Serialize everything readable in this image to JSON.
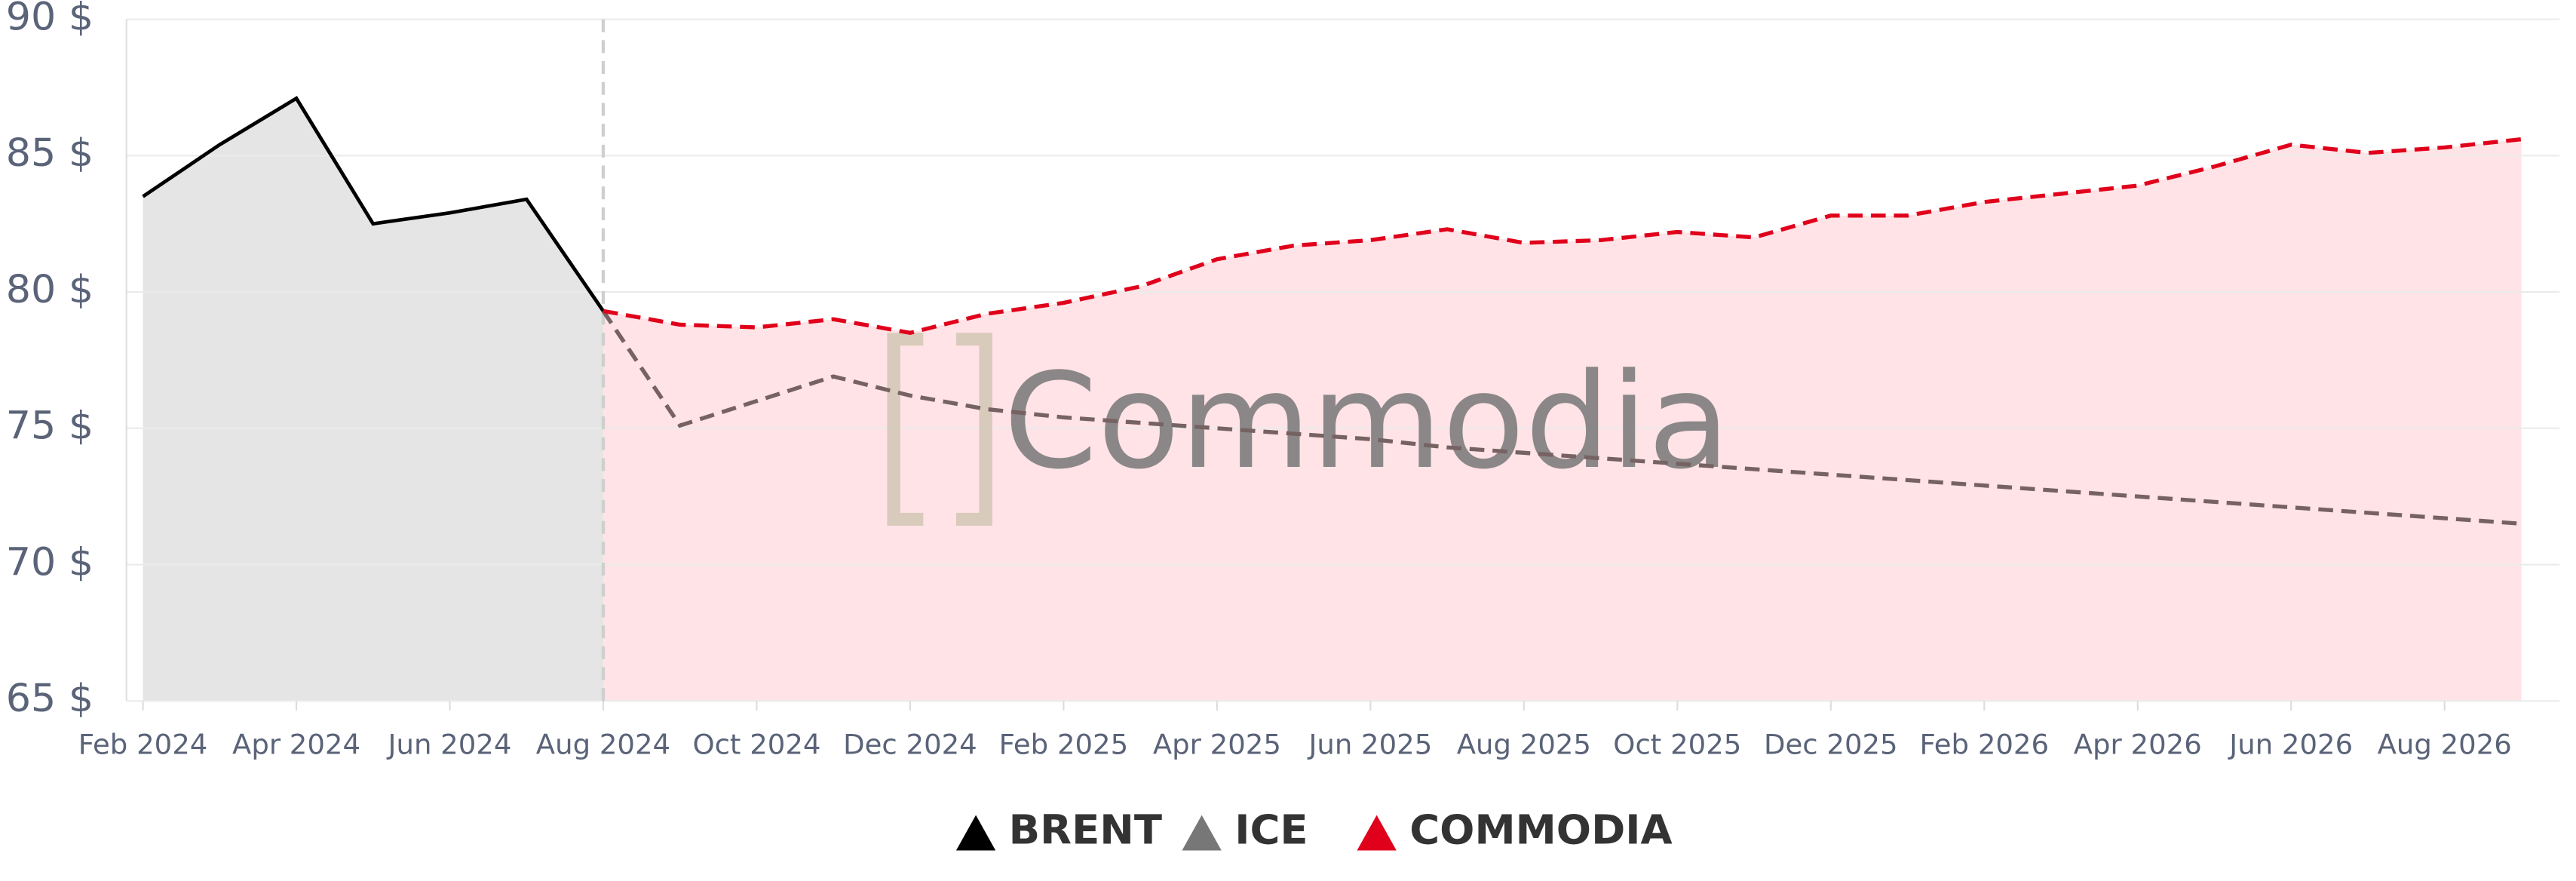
{
  "chart_data": {
    "type": "line",
    "watermark": "Commodia",
    "categories": [
      "Feb 2024",
      null,
      "Apr 2024",
      null,
      "Jun 2024",
      null,
      "Aug 2024",
      null,
      "Oct 2024",
      null,
      "Dec 2024",
      null,
      "Feb 2025",
      null,
      "Apr 2025",
      null,
      "Jun 2025",
      null,
      "Aug 2025",
      null,
      "Oct 2025",
      null,
      "Dec 2025",
      null,
      "Feb 2026",
      null,
      "Apr 2026",
      null,
      "Jun 2026",
      null,
      "Aug 2026",
      null
    ],
    "series": [
      {
        "name": "BRENT",
        "color": "#000000",
        "fill": "#e5e5e5",
        "dashed": false,
        "values": [
          83.5,
          85.4,
          87.1,
          82.5,
          82.9,
          83.4,
          79.3,
          null,
          null,
          null,
          null,
          null,
          null,
          null,
          null,
          null,
          null,
          null,
          null,
          null,
          null,
          null,
          null,
          null,
          null,
          null,
          null,
          null,
          null,
          null,
          null,
          null
        ]
      },
      {
        "name": "ICE",
        "color": "#766262",
        "legend_color": "#777777",
        "fill": "#d9b9bd",
        "dashed": true,
        "values": [
          null,
          null,
          null,
          null,
          null,
          null,
          79.3,
          75.1,
          76.0,
          76.9,
          76.2,
          75.7,
          75.4,
          75.2,
          75.0,
          74.8,
          74.6,
          74.3,
          74.1,
          73.9,
          73.7,
          73.5,
          73.3,
          73.1,
          72.9,
          72.7,
          72.5,
          72.3,
          72.1,
          71.9,
          71.7,
          71.5
        ]
      },
      {
        "name": "COMMODIA",
        "color": "#e0001b",
        "fill": "#ffe3e6",
        "dashed": true,
        "values": [
          null,
          null,
          null,
          null,
          null,
          null,
          79.3,
          78.8,
          78.7,
          79.0,
          78.5,
          79.2,
          79.6,
          80.2,
          81.2,
          81.7,
          81.9,
          82.3,
          81.8,
          81.9,
          82.2,
          82.0,
          82.8,
          82.8,
          83.3,
          83.6,
          83.9,
          84.6,
          85.4,
          85.1,
          85.3,
          85.6
        ]
      }
    ],
    "ylim": [
      65,
      90
    ],
    "yticks": [
      {
        "value": 65,
        "label": "65 $"
      },
      {
        "value": 70,
        "label": "70 $"
      },
      {
        "value": 75,
        "label": "75 $"
      },
      {
        "value": 80,
        "label": "80 $"
      },
      {
        "value": 85,
        "label": "85 $"
      },
      {
        "value": 90,
        "label": "90 $"
      }
    ],
    "grid": true
  }
}
